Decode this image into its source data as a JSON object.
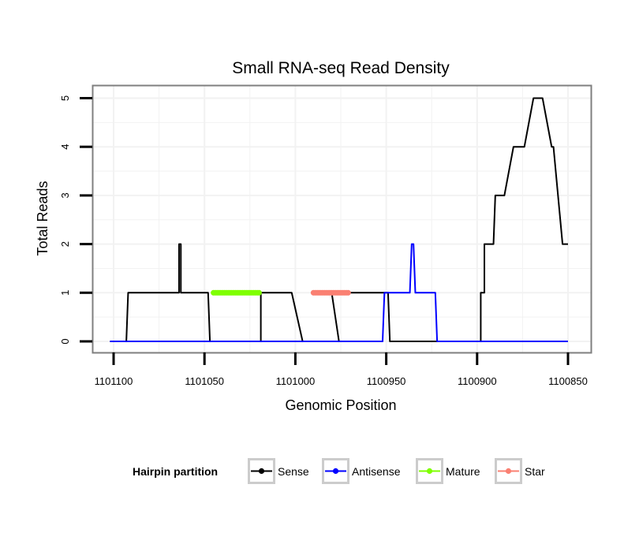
{
  "chart_data": {
    "type": "line",
    "title": "Small RNA-seq Read Density",
    "xlabel": "Genomic Position",
    "ylabel": "Total Reads",
    "x_reversed": true,
    "xlim": [
      1101102,
      1100850
    ],
    "ylim": [
      0,
      5
    ],
    "x_ticks": [
      1101100,
      1101050,
      1101000,
      1100950,
      1100900,
      1100850
    ],
    "x_tick_labels": [
      "1101100",
      "1101050",
      "1101000",
      "1100950",
      "1100900",
      "1100850"
    ],
    "y_ticks": [
      0,
      1,
      2,
      3,
      4,
      5
    ],
    "y_tick_labels": [
      "0",
      "1",
      "2",
      "3",
      "4",
      "5"
    ],
    "grid": true,
    "legend": {
      "title": "Hairpin partition",
      "position": "bottom",
      "entries": [
        {
          "name": "Sense",
          "color": "#000000"
        },
        {
          "name": "Antisense",
          "color": "#0000ff"
        },
        {
          "name": "Mature",
          "color": "#7fff00"
        },
        {
          "name": "Star",
          "color": "#fa8072"
        }
      ]
    },
    "series": [
      {
        "name": "Sense",
        "color": "#000000",
        "markers": false,
        "x": [
          1101102,
          1101093,
          1101092,
          1101064,
          1101064,
          1101063,
          1101063,
          1101048,
          1101047,
          1101050,
          1101019,
          1101019,
          1101016,
          1101002,
          1100996,
          1100976,
          1100980,
          1100949,
          1100948,
          1100938,
          1100898,
          1100898,
          1100896,
          1100896,
          1100891,
          1100890,
          1100885,
          1100880,
          1100874,
          1100869,
          1100864,
          1100859,
          1100858,
          1100853,
          1100850
        ],
        "y": [
          0,
          0,
          1,
          1,
          2,
          2,
          1,
          1,
          0,
          0,
          0,
          1,
          1,
          1,
          0,
          0,
          1,
          1,
          0,
          0,
          0,
          1,
          1,
          2,
          2,
          3,
          3,
          4,
          4,
          5,
          5,
          4,
          4,
          2,
          2
        ]
      },
      {
        "name": "Antisense",
        "color": "#0000ff",
        "markers": false,
        "x": [
          1101102,
          1100952,
          1100951,
          1100937,
          1100936,
          1100935,
          1100934,
          1100923,
          1100922,
          1100850
        ],
        "y": [
          0,
          0,
          1,
          1,
          2,
          2,
          1,
          1,
          0,
          0
        ]
      },
      {
        "name": "Mature",
        "color": "#7fff00",
        "markers": true,
        "x": [
          1101045,
          1101044,
          1101043,
          1101042,
          1101041,
          1101040,
          1101039,
          1101038,
          1101037,
          1101036,
          1101035,
          1101034,
          1101033,
          1101032,
          1101031,
          1101030,
          1101029,
          1101028,
          1101027,
          1101026,
          1101025,
          1101024,
          1101023,
          1101022,
          1101021,
          1101020
        ],
        "y": [
          1,
          1,
          1,
          1,
          1,
          1,
          1,
          1,
          1,
          1,
          1,
          1,
          1,
          1,
          1,
          1,
          1,
          1,
          1,
          1,
          1,
          1,
          1,
          1,
          1,
          1
        ]
      },
      {
        "name": "Star",
        "color": "#fa8072",
        "markers": true,
        "x": [
          1100990,
          1100989,
          1100988,
          1100987,
          1100986,
          1100985,
          1100984,
          1100983,
          1100982,
          1100981,
          1100980,
          1100979,
          1100978,
          1100977,
          1100976,
          1100975,
          1100974,
          1100973,
          1100972,
          1100971
        ],
        "y": [
          1,
          1,
          1,
          1,
          1,
          1,
          1,
          1,
          1,
          1,
          1,
          1,
          1,
          1,
          1,
          1,
          1,
          1,
          1,
          1
        ]
      }
    ]
  }
}
